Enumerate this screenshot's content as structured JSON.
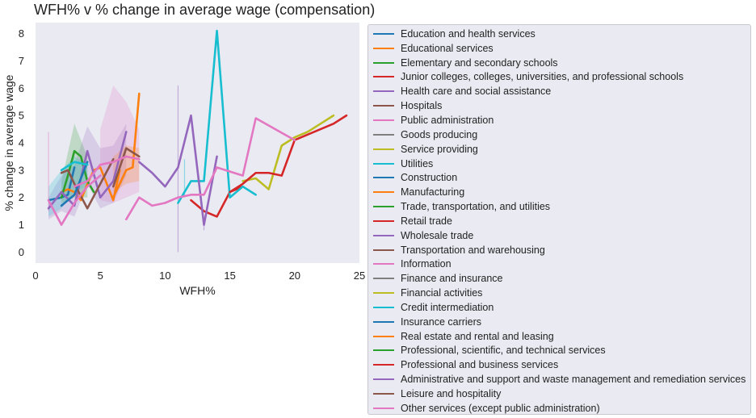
{
  "chart_data": {
    "type": "line",
    "title": "WFH% v % change in average wage (compensation)",
    "xlabel": "WFH%",
    "ylabel": "% change in average wage",
    "xlim": [
      0,
      25
    ],
    "ylim": [
      -0.4,
      8.4
    ],
    "xticks": [
      0,
      5,
      10,
      15,
      20,
      25
    ],
    "yticks": [
      0,
      1,
      2,
      3,
      4,
      5,
      6,
      7,
      8
    ],
    "grid": false,
    "legend_position": "right outside",
    "series": [
      {
        "name": "Education and health services",
        "color": "#1f77b4",
        "x": [
          1,
          2,
          2.5,
          3
        ],
        "y": [
          1.9,
          2.0,
          2.1,
          3.1
        ]
      },
      {
        "name": "Educational services",
        "color": "#ff7f0e",
        "x": [
          2,
          2.5,
          3,
          3.5,
          4,
          4.5,
          5,
          6,
          6.5
        ],
        "y": [
          2.2,
          2.3,
          2.2,
          1.9,
          2.5,
          3.0,
          3.1,
          1.9,
          3.0
        ]
      },
      {
        "name": "Elementary and secondary schools",
        "color": "#2ca02c",
        "x": [
          2,
          2.5,
          3,
          3.5,
          4,
          4.5
        ],
        "y": [
          2.0,
          2.8,
          3.7,
          3.5,
          2.6,
          2.2
        ]
      },
      {
        "name": "Junior colleges, colleges, universities, and professional schools",
        "color": "#d62728",
        "x": [
          12,
          13,
          14,
          15,
          16
        ],
        "y": [
          1.9,
          1.5,
          1.3,
          2.2,
          2.4
        ]
      },
      {
        "name": "Health care and social assistance",
        "color": "#9467bd",
        "x": [
          1,
          2,
          3,
          4,
          5,
          6,
          7
        ],
        "y": [
          1.6,
          2.2,
          1.7,
          3.7,
          2.0,
          2.6,
          4.4
        ]
      },
      {
        "name": "Hospitals",
        "color": "#8c564b",
        "x": [
          2,
          2.5,
          3,
          4,
          5,
          6
        ],
        "y": [
          2.9,
          3.0,
          2.5,
          1.6,
          2.5,
          3.4
        ]
      },
      {
        "name": "Public administration",
        "color": "#e377c2",
        "x": [
          1,
          2,
          3,
          4,
          5
        ],
        "y": [
          1.9,
          1.0,
          1.8,
          2.4,
          2.8
        ]
      },
      {
        "name": "Goods producing",
        "color": "#7f7f7f",
        "x": [],
        "y": []
      },
      {
        "name": "Service providing",
        "color": "#bcbd22",
        "x": [
          16,
          17,
          18,
          19,
          20,
          21,
          22,
          23
        ],
        "y": [
          2.6,
          2.7,
          2.3,
          3.9,
          4.2,
          4.4,
          4.7,
          5.0
        ]
      },
      {
        "name": "Utilities",
        "color": "#17becf",
        "x": [
          11,
          12,
          13,
          14,
          15,
          16,
          17
        ],
        "y": [
          1.8,
          2.6,
          2.6,
          8.1,
          2.0,
          2.4,
          2.1
        ]
      },
      {
        "name": "Construction",
        "color": "#1f77b4",
        "x": [
          2,
          3,
          4
        ],
        "y": [
          1.7,
          2.1,
          3.3
        ]
      },
      {
        "name": "Manufacturing",
        "color": "#ff7f0e",
        "x": [
          6,
          7,
          7.5,
          8
        ],
        "y": [
          2.0,
          3.0,
          3.1,
          5.8
        ]
      },
      {
        "name": "Trade, transportation, and utilities",
        "color": "#2ca02c",
        "x": [],
        "y": []
      },
      {
        "name": "Retail trade",
        "color": "#d62728",
        "x": [
          15,
          16,
          17,
          18,
          19,
          20,
          21,
          22,
          23,
          24
        ],
        "y": [
          2.2,
          2.5,
          2.9,
          2.9,
          2.8,
          4.1,
          4.3,
          4.5,
          4.7,
          5.0
        ]
      },
      {
        "name": "Wholesale trade",
        "color": "#9467bd",
        "x": [
          8,
          9,
          10,
          11,
          12,
          13,
          14
        ],
        "y": [
          3.3,
          2.9,
          2.4,
          3.1,
          5.0,
          1.0,
          3.5
        ]
      },
      {
        "name": "Transportation and warehousing",
        "color": "#8c564b",
        "x": [
          6,
          7,
          8
        ],
        "y": [
          2.4,
          3.8,
          3.5
        ]
      },
      {
        "name": "Information",
        "color": "#e377c2",
        "x": [
          7,
          8,
          9,
          10,
          11,
          12,
          13,
          14,
          16,
          17,
          20
        ],
        "y": [
          1.2,
          2.0,
          1.7,
          1.8,
          2.0,
          2.1,
          2.1,
          3.1,
          2.8,
          4.9,
          4.1
        ]
      },
      {
        "name": "Finance and insurance",
        "color": "#7f7f7f",
        "x": [],
        "y": []
      },
      {
        "name": "Financial activities",
        "color": "#bcbd22",
        "x": [],
        "y": []
      },
      {
        "name": "Credit intermediation",
        "color": "#17becf",
        "x": [
          2,
          3,
          4
        ],
        "y": [
          3.0,
          3.3,
          3.2
        ]
      },
      {
        "name": "Insurance carriers",
        "color": "#1f77b4",
        "x": [],
        "y": []
      },
      {
        "name": "Real estate and rental and leasing",
        "color": "#ff7f0e",
        "x": [],
        "y": []
      },
      {
        "name": "Professional, scientific, and technical services",
        "color": "#2ca02c",
        "x": [],
        "y": []
      },
      {
        "name": "Professional and business services",
        "color": "#d62728",
        "x": [],
        "y": []
      },
      {
        "name": "Administrative and support and waste management and remediation services",
        "color": "#9467bd",
        "x": [],
        "y": []
      },
      {
        "name": "Leisure and hospitality",
        "color": "#8c564b",
        "x": [],
        "y": []
      },
      {
        "name": "Other services (except public administration)",
        "color": "#e377c2",
        "x": [
          3,
          4,
          5,
          6,
          7,
          8
        ],
        "y": [
          2.4,
          2.6,
          3.2,
          3.3,
          3.5,
          3.4
        ]
      }
    ],
    "bands": [
      {
        "color": "#9467bd",
        "x": [
          1,
          2,
          3,
          4,
          5,
          6,
          7
        ],
        "lo": [
          1.2,
          1.5,
          1.3,
          2.5,
          1.6,
          1.8,
          2.8
        ],
        "hi": [
          2.0,
          2.8,
          3.2,
          4.6,
          3.8,
          3.9,
          4.7
        ]
      },
      {
        "color": "#e377c2",
        "x": [
          5,
          6,
          7,
          8
        ],
        "lo": [
          1.9,
          1.8,
          2.0,
          2.2
        ],
        "hi": [
          4.5,
          6.1,
          5.5,
          4.5
        ]
      },
      {
        "color": "#2ca02c",
        "x": [
          2,
          3,
          4
        ],
        "lo": [
          1.8,
          2.0,
          2.0
        ],
        "hi": [
          2.6,
          4.7,
          3.5
        ]
      },
      {
        "color": "#17becf",
        "x": [
          1,
          2,
          3,
          4
        ],
        "lo": [
          1.3,
          1.6,
          2.2,
          2.4
        ],
        "hi": [
          2.4,
          3.0,
          3.5,
          3.2
        ]
      },
      {
        "color": "#ff7f0e",
        "x": [
          6,
          7,
          8
        ],
        "lo": [
          2.2,
          2.5,
          2.6
        ],
        "hi": [
          3.5,
          3.9,
          3.8
        ]
      }
    ],
    "error_bars": [
      {
        "color": "#e377c2",
        "x": 1,
        "lo": 1.5,
        "hi": 4.4
      },
      {
        "color": "#9467bd",
        "x": 11,
        "lo": 0.0,
        "hi": 6.1
      },
      {
        "color": "#17becf",
        "x": 11.5,
        "lo": 2.0,
        "hi": 3.4
      },
      {
        "color": "#9467bd",
        "x": 13,
        "lo": 0.8,
        "hi": 1.2
      }
    ]
  }
}
